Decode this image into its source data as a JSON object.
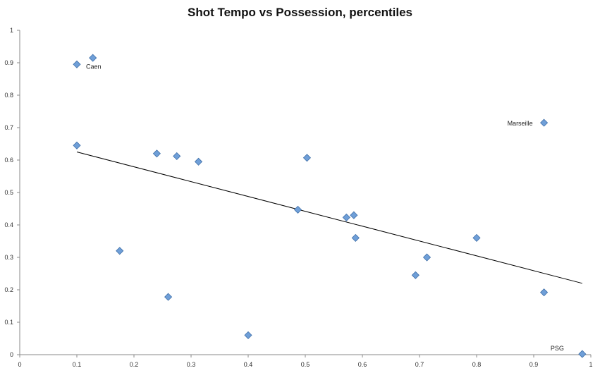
{
  "chart_data": {
    "type": "scatter",
    "title": "Shot Tempo vs Possession, percentiles",
    "xlabel": "",
    "ylabel": "",
    "xlim": [
      0,
      1
    ],
    "ylim": [
      0,
      1
    ],
    "x_ticks": [
      "0",
      "0.1",
      "0.2",
      "0.3",
      "0.4",
      "0.5",
      "0.6",
      "0.7",
      "0.8",
      "0.9",
      "1"
    ],
    "y_ticks": [
      "0",
      "0.1",
      "0.2",
      "0.3",
      "0.4",
      "0.5",
      "0.6",
      "0.7",
      "0.8",
      "0.9",
      "1"
    ],
    "grid": false,
    "legend": "none",
    "marker_color": "#6f9fd8",
    "marker_edge": "#3f6fa8",
    "trendline": {
      "type": "linear",
      "x": [
        0.1,
        0.985
      ],
      "y": [
        0.625,
        0.22
      ]
    },
    "points": [
      {
        "x": 0.1,
        "y": 0.895,
        "label": "Caen"
      },
      {
        "x": 0.128,
        "y": 0.915,
        "label": ""
      },
      {
        "x": 0.1,
        "y": 0.645,
        "label": ""
      },
      {
        "x": 0.175,
        "y": 0.32,
        "label": ""
      },
      {
        "x": 0.24,
        "y": 0.62,
        "label": ""
      },
      {
        "x": 0.26,
        "y": 0.178,
        "label": ""
      },
      {
        "x": 0.275,
        "y": 0.612,
        "label": ""
      },
      {
        "x": 0.313,
        "y": 0.595,
        "label": ""
      },
      {
        "x": 0.4,
        "y": 0.06,
        "label": ""
      },
      {
        "x": 0.487,
        "y": 0.447,
        "label": ""
      },
      {
        "x": 0.503,
        "y": 0.607,
        "label": ""
      },
      {
        "x": 0.572,
        "y": 0.423,
        "label": ""
      },
      {
        "x": 0.585,
        "y": 0.43,
        "label": ""
      },
      {
        "x": 0.588,
        "y": 0.36,
        "label": ""
      },
      {
        "x": 0.693,
        "y": 0.245,
        "label": ""
      },
      {
        "x": 0.713,
        "y": 0.3,
        "label": ""
      },
      {
        "x": 0.8,
        "y": 0.36,
        "label": ""
      },
      {
        "x": 0.918,
        "y": 0.715,
        "label": "Marseille"
      },
      {
        "x": 0.918,
        "y": 0.192,
        "label": ""
      },
      {
        "x": 0.985,
        "y": 0.002,
        "label": "PSG"
      }
    ]
  }
}
